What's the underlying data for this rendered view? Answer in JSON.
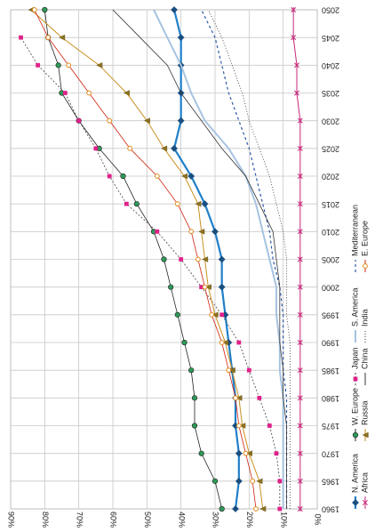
{
  "chart_data": {
    "type": "line",
    "title": "",
    "xlabel": "",
    "ylabel": "",
    "orientation": "rotated-90-clockwise",
    "grid": true,
    "legend_position": "bottom",
    "x": [
      1960,
      1965,
      1970,
      1975,
      1980,
      1985,
      1990,
      1995,
      2000,
      2005,
      2010,
      2015,
      2020,
      2025,
      2030,
      2035,
      2040,
      2045,
      2050
    ],
    "x_tick_labels": [
      "1960",
      "1965",
      "1970",
      "1975",
      "1980",
      "1985",
      "1990",
      "1995",
      "2000",
      "2005",
      "2010",
      "2015",
      "2020",
      "2025",
      "2030",
      "2035",
      "2040",
      "2045",
      "2050"
    ],
    "ylim": [
      0,
      90
    ],
    "y_tick_labels": [
      "0%",
      "10%",
      "20%",
      "30%",
      "40%",
      "50%",
      "60%",
      "70%",
      "80%",
      "90%"
    ],
    "series": [
      {
        "name": "N. America",
        "color": "#1f7fc9",
        "dash": "",
        "width": 2.2,
        "marker": "diamond",
        "values": [
          24,
          23,
          23,
          24,
          24,
          25,
          26,
          27,
          28,
          28,
          30,
          33,
          37,
          42,
          40,
          40,
          40,
          40,
          42
        ]
      },
      {
        "name": "W. Europe",
        "color": "#222222",
        "dash": "",
        "width": 0.8,
        "marker": "circle",
        "values": [
          28,
          30,
          34,
          36,
          36,
          37,
          39,
          41,
          43,
          45,
          48,
          53,
          57,
          64,
          70,
          75,
          76,
          79,
          80
        ]
      },
      {
        "name": "Japan",
        "color": "#444444",
        "dash": "2,2",
        "width": 0.8,
        "marker": "square",
        "values": [
          11,
          11,
          12,
          14,
          17,
          20,
          23,
          28,
          34,
          40,
          47,
          56,
          61,
          65,
          70,
          74,
          82,
          87,
          null
        ]
      },
      {
        "name": "S. America",
        "color": "#a6c3e0",
        "dash": "",
        "width": 2,
        "marker": "none",
        "values": [
          10,
          10,
          10,
          10,
          10,
          11,
          11,
          12,
          12,
          14,
          16,
          18,
          21,
          26,
          33,
          37,
          40,
          44,
          48
        ]
      },
      {
        "name": "Mediterranean",
        "color": "#2b57a8",
        "dash": "3,3",
        "width": 1.2,
        "marker": "none",
        "values": [
          9,
          9,
          9,
          9,
          9,
          10,
          10,
          10,
          11,
          13,
          14,
          16,
          18,
          20,
          23,
          26,
          28,
          30,
          34
        ]
      },
      {
        "name": "Russia",
        "color": "#c89020",
        "dash": "",
        "width": 1,
        "marker": "tri",
        "values": [
          16,
          17,
          20,
          22,
          23,
          25,
          27,
          30,
          32,
          33,
          34,
          35,
          39,
          45,
          50,
          56,
          64,
          75,
          84
        ]
      },
      {
        "name": "China",
        "color": "#333333",
        "dash": "",
        "width": 0.8,
        "marker": "none",
        "values": [
          9,
          9,
          9,
          9,
          10,
          10,
          11,
          11,
          11,
          12,
          13,
          17,
          21,
          28,
          34,
          40,
          44,
          52,
          60
        ]
      },
      {
        "name": "India",
        "color": "#333333",
        "dash": "1,2",
        "width": 0.8,
        "marker": "none",
        "values": [
          8,
          8,
          8,
          8,
          8,
          8,
          8,
          9,
          9,
          9,
          10,
          12,
          14,
          17,
          20,
          22,
          25,
          28,
          32
        ]
      },
      {
        "name": "Africa",
        "color": "#c8277a",
        "dash": "",
        "width": 1,
        "marker": "star",
        "values": [
          5,
          5,
          5,
          5,
          5,
          5,
          5,
          5,
          5,
          5,
          5,
          5,
          5,
          5,
          5,
          6,
          6,
          7,
          7
        ]
      },
      {
        "name": "E. Europe",
        "color": "#d02010",
        "dash": "",
        "width": 0.8,
        "marker": "circle-open-orange",
        "values": [
          18,
          19,
          21,
          23,
          24,
          26,
          28,
          31,
          33,
          35,
          37,
          41,
          47,
          55,
          61,
          67,
          73,
          79,
          83
        ]
      }
    ],
    "legend": [
      {
        "label": "N. America",
        "series": 0
      },
      {
        "label": "W. Europe",
        "series": 1
      },
      {
        "label": "Japan",
        "series": 2
      },
      {
        "label": "S. America",
        "series": 3
      },
      {
        "label": "Mediterranean",
        "series": 4
      },
      {
        "label": "Africa",
        "series": 8
      },
      {
        "label": "Russia",
        "series": 5
      },
      {
        "label": "China",
        "series": 6
      },
      {
        "label": "India",
        "series": 7
      },
      {
        "label": "E. Europe",
        "series": 9
      }
    ]
  }
}
